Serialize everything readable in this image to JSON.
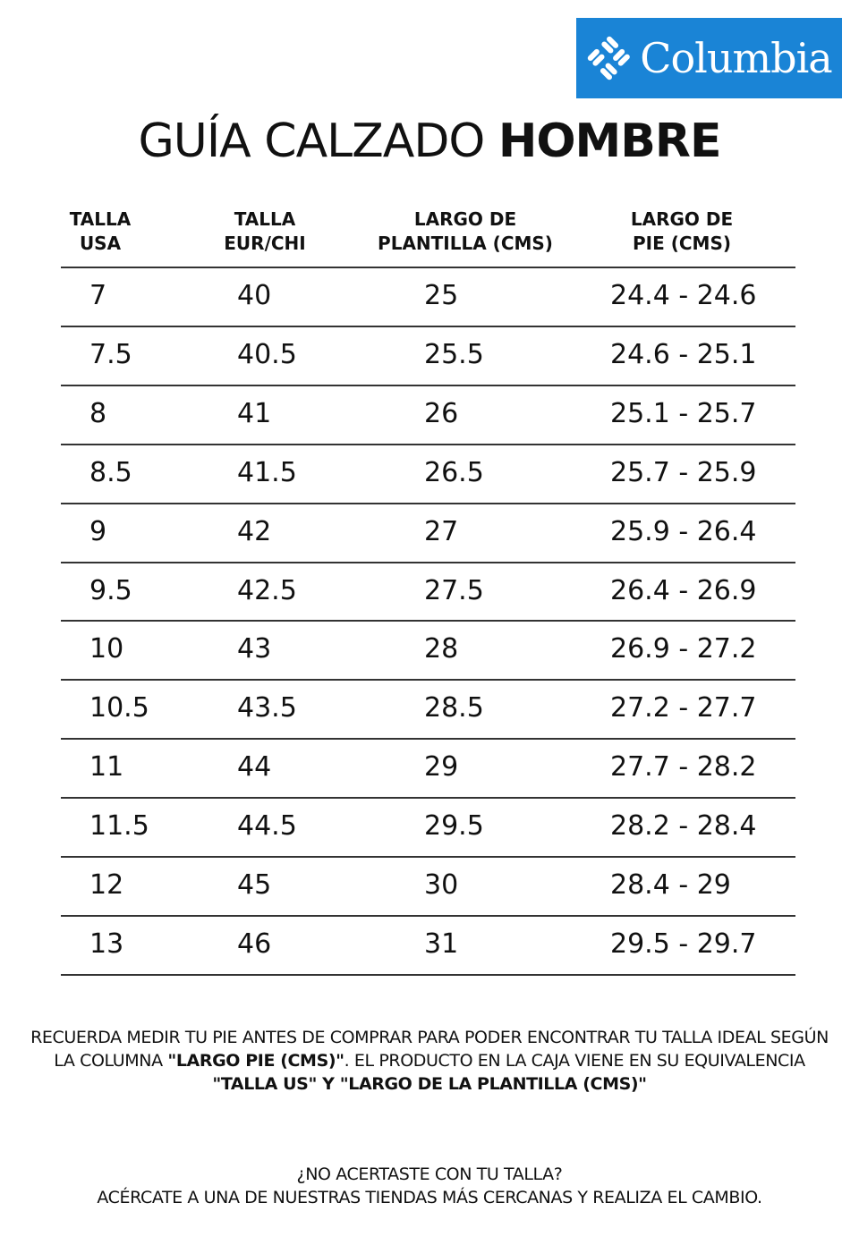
{
  "logo": {
    "text": "Columbia",
    "color": "#1a84d6"
  },
  "title": {
    "regular": "GUÍA CALZADO",
    "bold": "HOMBRE"
  },
  "columns": [
    {
      "line1": "TALLA",
      "line2": "USA"
    },
    {
      "line1": "TALLA",
      "line2": "EUR/CHI"
    },
    {
      "line1": "LARGO DE",
      "line2": "PLANTILLA (CMS)"
    },
    {
      "line1": "LARGO DE",
      "line2": "PIE (CMS)"
    }
  ],
  "rows": [
    [
      "7",
      "40",
      "25",
      "24.4 - 24.6"
    ],
    [
      "7.5",
      "40.5",
      "25.5",
      "24.6 - 25.1"
    ],
    [
      "8",
      "41",
      "26",
      "25.1 - 25.7"
    ],
    [
      "8.5",
      "41.5",
      "26.5",
      "25.7 - 25.9"
    ],
    [
      "9",
      "42",
      "27",
      "25.9 - 26.4"
    ],
    [
      "9.5",
      "42.5",
      "27.5",
      "26.4 - 26.9"
    ],
    [
      "10",
      "43",
      "28",
      "26.9 - 27.2"
    ],
    [
      "10.5",
      "43.5",
      "28.5",
      "27.2 - 27.7"
    ],
    [
      "11",
      "44",
      "29",
      "27.7 - 28.2"
    ],
    [
      "11.5",
      "44.5",
      "29.5",
      "28.2 - 28.4"
    ],
    [
      "12",
      "45",
      "30",
      "28.4 - 29"
    ],
    [
      "13",
      "46",
      "31",
      "29.5 - 29.7"
    ]
  ],
  "note": {
    "line1": "RECUERDA MEDIR TU PIE ANTES DE COMPRAR PARA PODER ENCONTRAR TU TALLA IDEAL SEGÚN",
    "line2a": "LA COLUMNA ",
    "line2b": "\"LARGO PIE (CMS)\"",
    "line2c": ". EL PRODUCTO EN LA CAJA VIENE EN SU EQUIVALENCIA",
    "line3": "\"TALLA US\" Y \"LARGO DE LA PLANTILLA (CMS)\""
  },
  "footer": {
    "line1": "¿NO ACERTASTE CON TU TALLA?",
    "line2": "ACÉRCATE A UNA DE NUESTRAS TIENDAS MÁS CERCANAS Y REALIZA EL CAMBIO."
  }
}
